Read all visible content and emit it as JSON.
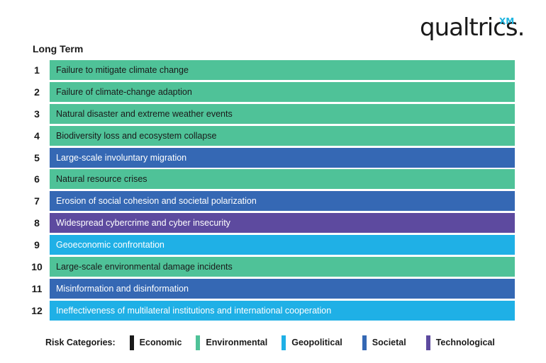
{
  "logo": {
    "wordmark": "qualtrics.",
    "badge": "XM"
  },
  "chart_data": {
    "type": "table",
    "title": "Long Term",
    "categories": [
      {
        "name": "Economic",
        "color": "#1a1a1a"
      },
      {
        "name": "Environmental",
        "color": "#4fc298"
      },
      {
        "name": "Geopolitical",
        "color": "#1fb0e6"
      },
      {
        "name": "Societal",
        "color": "#3568b4"
      },
      {
        "name": "Technological",
        "color": "#5d4a9f"
      }
    ],
    "rows": [
      {
        "rank": "1",
        "label": "Failure to mitigate climate change",
        "category": "Environmental"
      },
      {
        "rank": "2",
        "label": "Failure of climate-change adaption",
        "category": "Environmental"
      },
      {
        "rank": "3",
        "label": "Natural disaster and extreme weather events",
        "category": "Environmental"
      },
      {
        "rank": "4",
        "label": "Biodiversity loss and ecosystem collapse",
        "category": "Environmental"
      },
      {
        "rank": "5",
        "label": "Large-scale involuntary migration",
        "category": "Societal"
      },
      {
        "rank": "6",
        "label": "Natural resource crises",
        "category": "Environmental"
      },
      {
        "rank": "7",
        "label": "Erosion of social cohesion and societal polarization",
        "category": "Societal"
      },
      {
        "rank": "8",
        "label": "Widespread cybercrime and cyber insecurity",
        "category": "Technological"
      },
      {
        "rank": "9",
        "label": "Geoeconomic confrontation",
        "category": "Geopolitical"
      },
      {
        "rank": "10",
        "label": "Large-scale environmental damage incidents",
        "category": "Environmental"
      },
      {
        "rank": "11",
        "label": "Misinformation and disinformation",
        "category": "Societal"
      },
      {
        "rank": "12",
        "label": "Ineffectiveness of multilateral institutions and international cooperation",
        "category": "Geopolitical"
      }
    ]
  },
  "legend": {
    "title": "Risk Categories:"
  },
  "text_colors": {
    "Environmental": "#1a1a1a",
    "Societal": "#ffffff",
    "Technological": "#ffffff",
    "Geopolitical": "#ffffff",
    "Economic": "#ffffff"
  }
}
